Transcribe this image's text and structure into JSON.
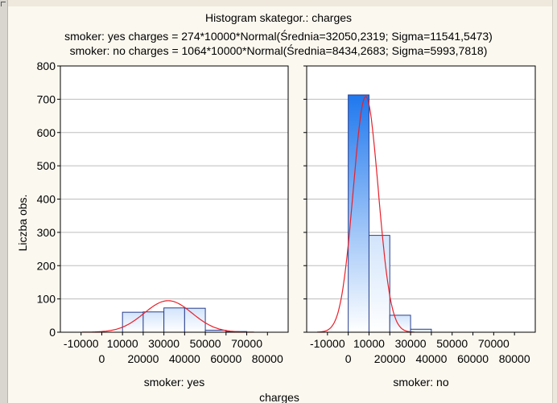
{
  "chart_data": {
    "type": "bar",
    "title": "Histogram skategor.:  charges",
    "subtitle_lines": [
      "smoker: yes charges = 274*10000*Normal(Średnia=32050,2319; Sigma=11541,5473)",
      "smoker: no charges = 1064*10000*Normal(Średnia=8434,2683; Sigma=5993,7818)"
    ],
    "ylabel": "Liczba obs.",
    "xlabel": "charges",
    "ylim": [
      0,
      800
    ],
    "yticks": [
      0,
      100,
      200,
      300,
      400,
      500,
      600,
      700,
      800
    ],
    "xlim": [
      -20000,
      90000
    ],
    "xticks_upper": [
      -10000,
      10000,
      30000,
      50000,
      70000
    ],
    "xticks_lower": [
      0,
      20000,
      40000,
      60000,
      80000
    ],
    "grid": true,
    "bin_width": 10000,
    "panels": [
      {
        "name": "smoker: yes",
        "bins": [
          {
            "x0": 10000,
            "x1": 20000,
            "value": 60
          },
          {
            "x0": 20000,
            "x1": 30000,
            "value": 61
          },
          {
            "x0": 30000,
            "x1": 40000,
            "value": 73
          },
          {
            "x0": 40000,
            "x1": 50000,
            "value": 72
          },
          {
            "x0": 50000,
            "x1": 60000,
            "value": 6
          },
          {
            "x0": 60000,
            "x1": 70000,
            "value": 2
          }
        ],
        "normal_fit": {
          "n": 274,
          "mean": 32050.2319,
          "sigma": 11541.5473
        }
      },
      {
        "name": "smoker: no",
        "bins": [
          {
            "x0": 0,
            "x1": 10000,
            "value": 713
          },
          {
            "x0": 10000,
            "x1": 20000,
            "value": 291
          },
          {
            "x0": 20000,
            "x1": 30000,
            "value": 51
          },
          {
            "x0": 30000,
            "x1": 40000,
            "value": 9
          }
        ],
        "normal_fit": {
          "n": 1064,
          "mean": 8434.2683,
          "sigma": 5993.7818
        }
      }
    ],
    "colors": {
      "fit_curve": "#e8202a",
      "bar_top": "#d2e4fb",
      "bar_bottom": "#ffffff",
      "bar_tall_top": "#1f78ee",
      "bar_edge": "#2a3f8c",
      "grid": "#bdbdbd"
    }
  }
}
